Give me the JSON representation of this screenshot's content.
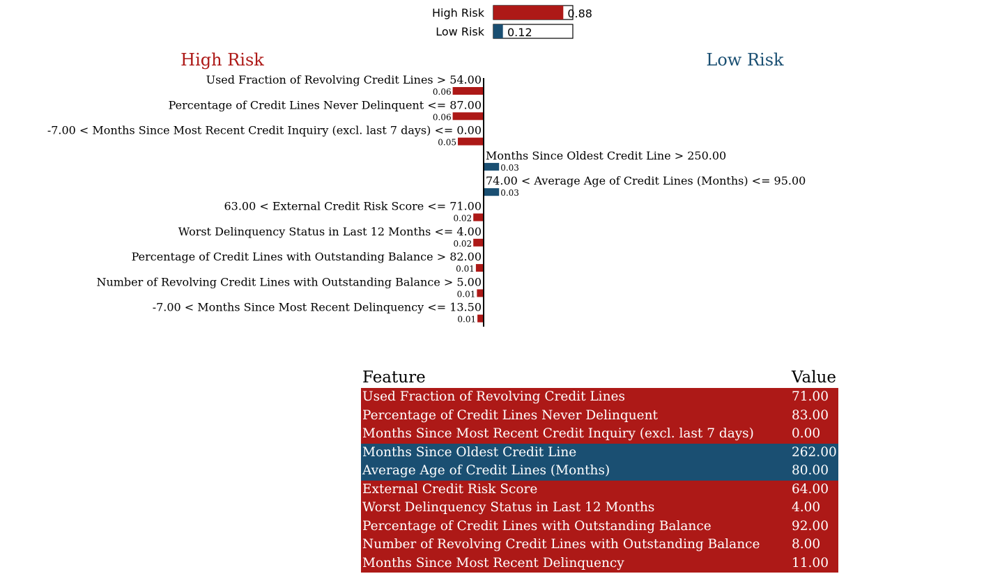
{
  "colors": {
    "high_risk": "#AD1917",
    "low_risk": "#1A4F72",
    "axis": "#000000"
  },
  "chart_data": [
    {
      "type": "bar",
      "orientation": "horizontal",
      "categories": [
        "High Risk",
        "Low Risk"
      ],
      "values": [
        0.88,
        0.12
      ],
      "value_labels": [
        "0.88",
        "0.12"
      ],
      "xlim": [
        0,
        1
      ],
      "colors": [
        "#AD1917",
        "#1A4F72"
      ]
    },
    {
      "type": "bar",
      "orientation": "horizontal",
      "side_titles": {
        "left": "High Risk",
        "right": "Low Risk"
      },
      "bars": [
        {
          "label": "Used Fraction of Revolving Credit Lines > 54.00",
          "value": 0.06,
          "value_label": "0.06",
          "class": "High Risk"
        },
        {
          "label": "Percentage of Credit Lines Never Delinquent <= 87.00",
          "value": 0.06,
          "value_label": "0.06",
          "class": "High Risk"
        },
        {
          "label": "-7.00 < Months Since Most Recent Credit Inquiry (excl. last 7 days) <= 0.00",
          "value": 0.05,
          "value_label": "0.05",
          "class": "High Risk"
        },
        {
          "label": "Months Since Oldest Credit Line > 250.00",
          "value": 0.03,
          "value_label": "0.03",
          "class": "Low Risk"
        },
        {
          "label": "74.00 < Average Age of Credit Lines (Months) <= 95.00",
          "value": 0.03,
          "value_label": "0.03",
          "class": "Low Risk"
        },
        {
          "label": "63.00 < External Credit Risk Score <= 71.00",
          "value": 0.02,
          "value_label": "0.02",
          "class": "High Risk"
        },
        {
          "label": "Worst Delinquency Status in Last 12 Months <= 4.00",
          "value": 0.02,
          "value_label": "0.02",
          "class": "High Risk"
        },
        {
          "label": "Percentage of Credit Lines with Outstanding Balance > 82.00",
          "value": 0.015,
          "value_label": "0.01",
          "class": "High Risk"
        },
        {
          "label": "Number of Revolving Credit Lines with Outstanding Balance > 5.00",
          "value": 0.013,
          "value_label": "0.01",
          "class": "High Risk"
        },
        {
          "label": "-7.00 < Months Since Most Recent Delinquency <= 13.50",
          "value": 0.012,
          "value_label": "0.01",
          "class": "High Risk"
        }
      ]
    },
    {
      "type": "table",
      "columns": [
        "Feature",
        "Value"
      ],
      "rows": [
        {
          "feature": "Used Fraction of Revolving Credit Lines",
          "value": "71.00",
          "class": "High Risk"
        },
        {
          "feature": "Percentage of Credit Lines Never Delinquent",
          "value": "83.00",
          "class": "High Risk"
        },
        {
          "feature": "Months Since Most Recent Credit Inquiry (excl. last 7 days)",
          "value": "0.00",
          "class": "High Risk"
        },
        {
          "feature": "Months Since Oldest Credit Line",
          "value": "262.00",
          "class": "Low Risk"
        },
        {
          "feature": "Average Age of Credit Lines (Months)",
          "value": "80.00",
          "class": "Low Risk"
        },
        {
          "feature": "External Credit Risk Score",
          "value": "64.00",
          "class": "High Risk"
        },
        {
          "feature": "Worst Delinquency Status in Last 12 Months",
          "value": "4.00",
          "class": "High Risk"
        },
        {
          "feature": "Percentage of Credit Lines with Outstanding Balance",
          "value": "92.00",
          "class": "High Risk"
        },
        {
          "feature": "Number of Revolving Credit Lines with Outstanding Balance",
          "value": "8.00",
          "class": "High Risk"
        },
        {
          "feature": "Months Since Most Recent Delinquency",
          "value": "11.00",
          "class": "High Risk"
        }
      ]
    }
  ]
}
